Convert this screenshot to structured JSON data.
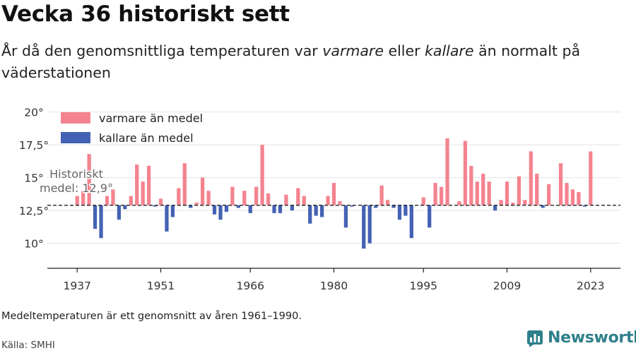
{
  "header": {
    "title": "Vecka 36 historiskt sett",
    "subtitle_parts": [
      "År då den genomsnittliga temperaturen var ",
      "varmare",
      " eller ",
      "kallare",
      " än normalt på väderstationen"
    ]
  },
  "footer": {
    "note": "Medeltemperaturen är ett genomsnitt av åren 1961–1990.",
    "source": "Källa: SMHI",
    "brand": "Newsworthy"
  },
  "colors": {
    "warm": "#f4838f",
    "cold": "#4462b4",
    "brand": "#2f7f8a"
  },
  "chart_data": {
    "type": "bar",
    "baseline": 12.9,
    "baseline_label": [
      "Historiskt",
      "medel: 12,9°"
    ],
    "legend": {
      "warm": "varmare än medel",
      "cold": "kallare än medel",
      "position": "top-left"
    },
    "xlim": [
      1932,
      2028
    ],
    "ylim": [
      8.1,
      21
    ],
    "x_ticks": [
      1937,
      1951,
      1966,
      1980,
      1995,
      2009,
      2023
    ],
    "x_tick_labels": [
      "1937",
      "1951",
      "1966",
      "1980",
      "1995",
      "2009",
      "2023"
    ],
    "y_ticks": [
      10,
      12.5,
      15,
      17.5,
      20
    ],
    "y_tick_labels": [
      "10°",
      "12,5°",
      "15°",
      "17,5°",
      "20°"
    ],
    "grid": true,
    "x": [
      1937,
      1938,
      1939,
      1940,
      1941,
      1942,
      1943,
      1944,
      1945,
      1946,
      1947,
      1948,
      1949,
      1950,
      1951,
      1952,
      1953,
      1954,
      1955,
      1956,
      1957,
      1958,
      1959,
      1960,
      1961,
      1962,
      1963,
      1964,
      1965,
      1966,
      1967,
      1968,
      1969,
      1970,
      1971,
      1972,
      1973,
      1974,
      1975,
      1976,
      1977,
      1978,
      1979,
      1980,
      1981,
      1982,
      1983,
      1984,
      1985,
      1986,
      1987,
      1988,
      1989,
      1990,
      1991,
      1992,
      1993,
      1994,
      1995,
      1996,
      1997,
      1998,
      1999,
      2000,
      2001,
      2002,
      2003,
      2004,
      2005,
      2006,
      2007,
      2008,
      2009,
      2010,
      2011,
      2012,
      2013,
      2014,
      2015,
      2016,
      2017,
      2018,
      2019,
      2020,
      2021,
      2022,
      2023
    ],
    "values": [
      13.6,
      14.0,
      16.8,
      11.1,
      10.4,
      13.6,
      14.1,
      11.8,
      12.6,
      13.6,
      16.0,
      14.7,
      15.9,
      12.8,
      13.4,
      10.9,
      12.0,
      14.2,
      16.1,
      12.7,
      13.1,
      15.0,
      14.0,
      12.2,
      11.8,
      12.4,
      14.3,
      12.7,
      14.0,
      12.3,
      14.3,
      17.5,
      13.8,
      12.3,
      12.3,
      13.7,
      12.5,
      14.2,
      13.6,
      11.5,
      12.1,
      12.0,
      13.6,
      14.6,
      13.2,
      11.2,
      12.8,
      12.9,
      9.6,
      10.0,
      12.7,
      14.4,
      13.3,
      12.7,
      11.8,
      12.1,
      10.4,
      12.9,
      13.5,
      11.2,
      14.6,
      14.3,
      18.0,
      12.9,
      13.2,
      17.8,
      15.9,
      14.7,
      15.3,
      14.7,
      12.5,
      13.3,
      14.7,
      13.1,
      15.1,
      13.3,
      17.0,
      15.3,
      12.7,
      14.5,
      12.9,
      16.1,
      14.6,
      14.1,
      13.9,
      12.8,
      17.0
    ]
  }
}
